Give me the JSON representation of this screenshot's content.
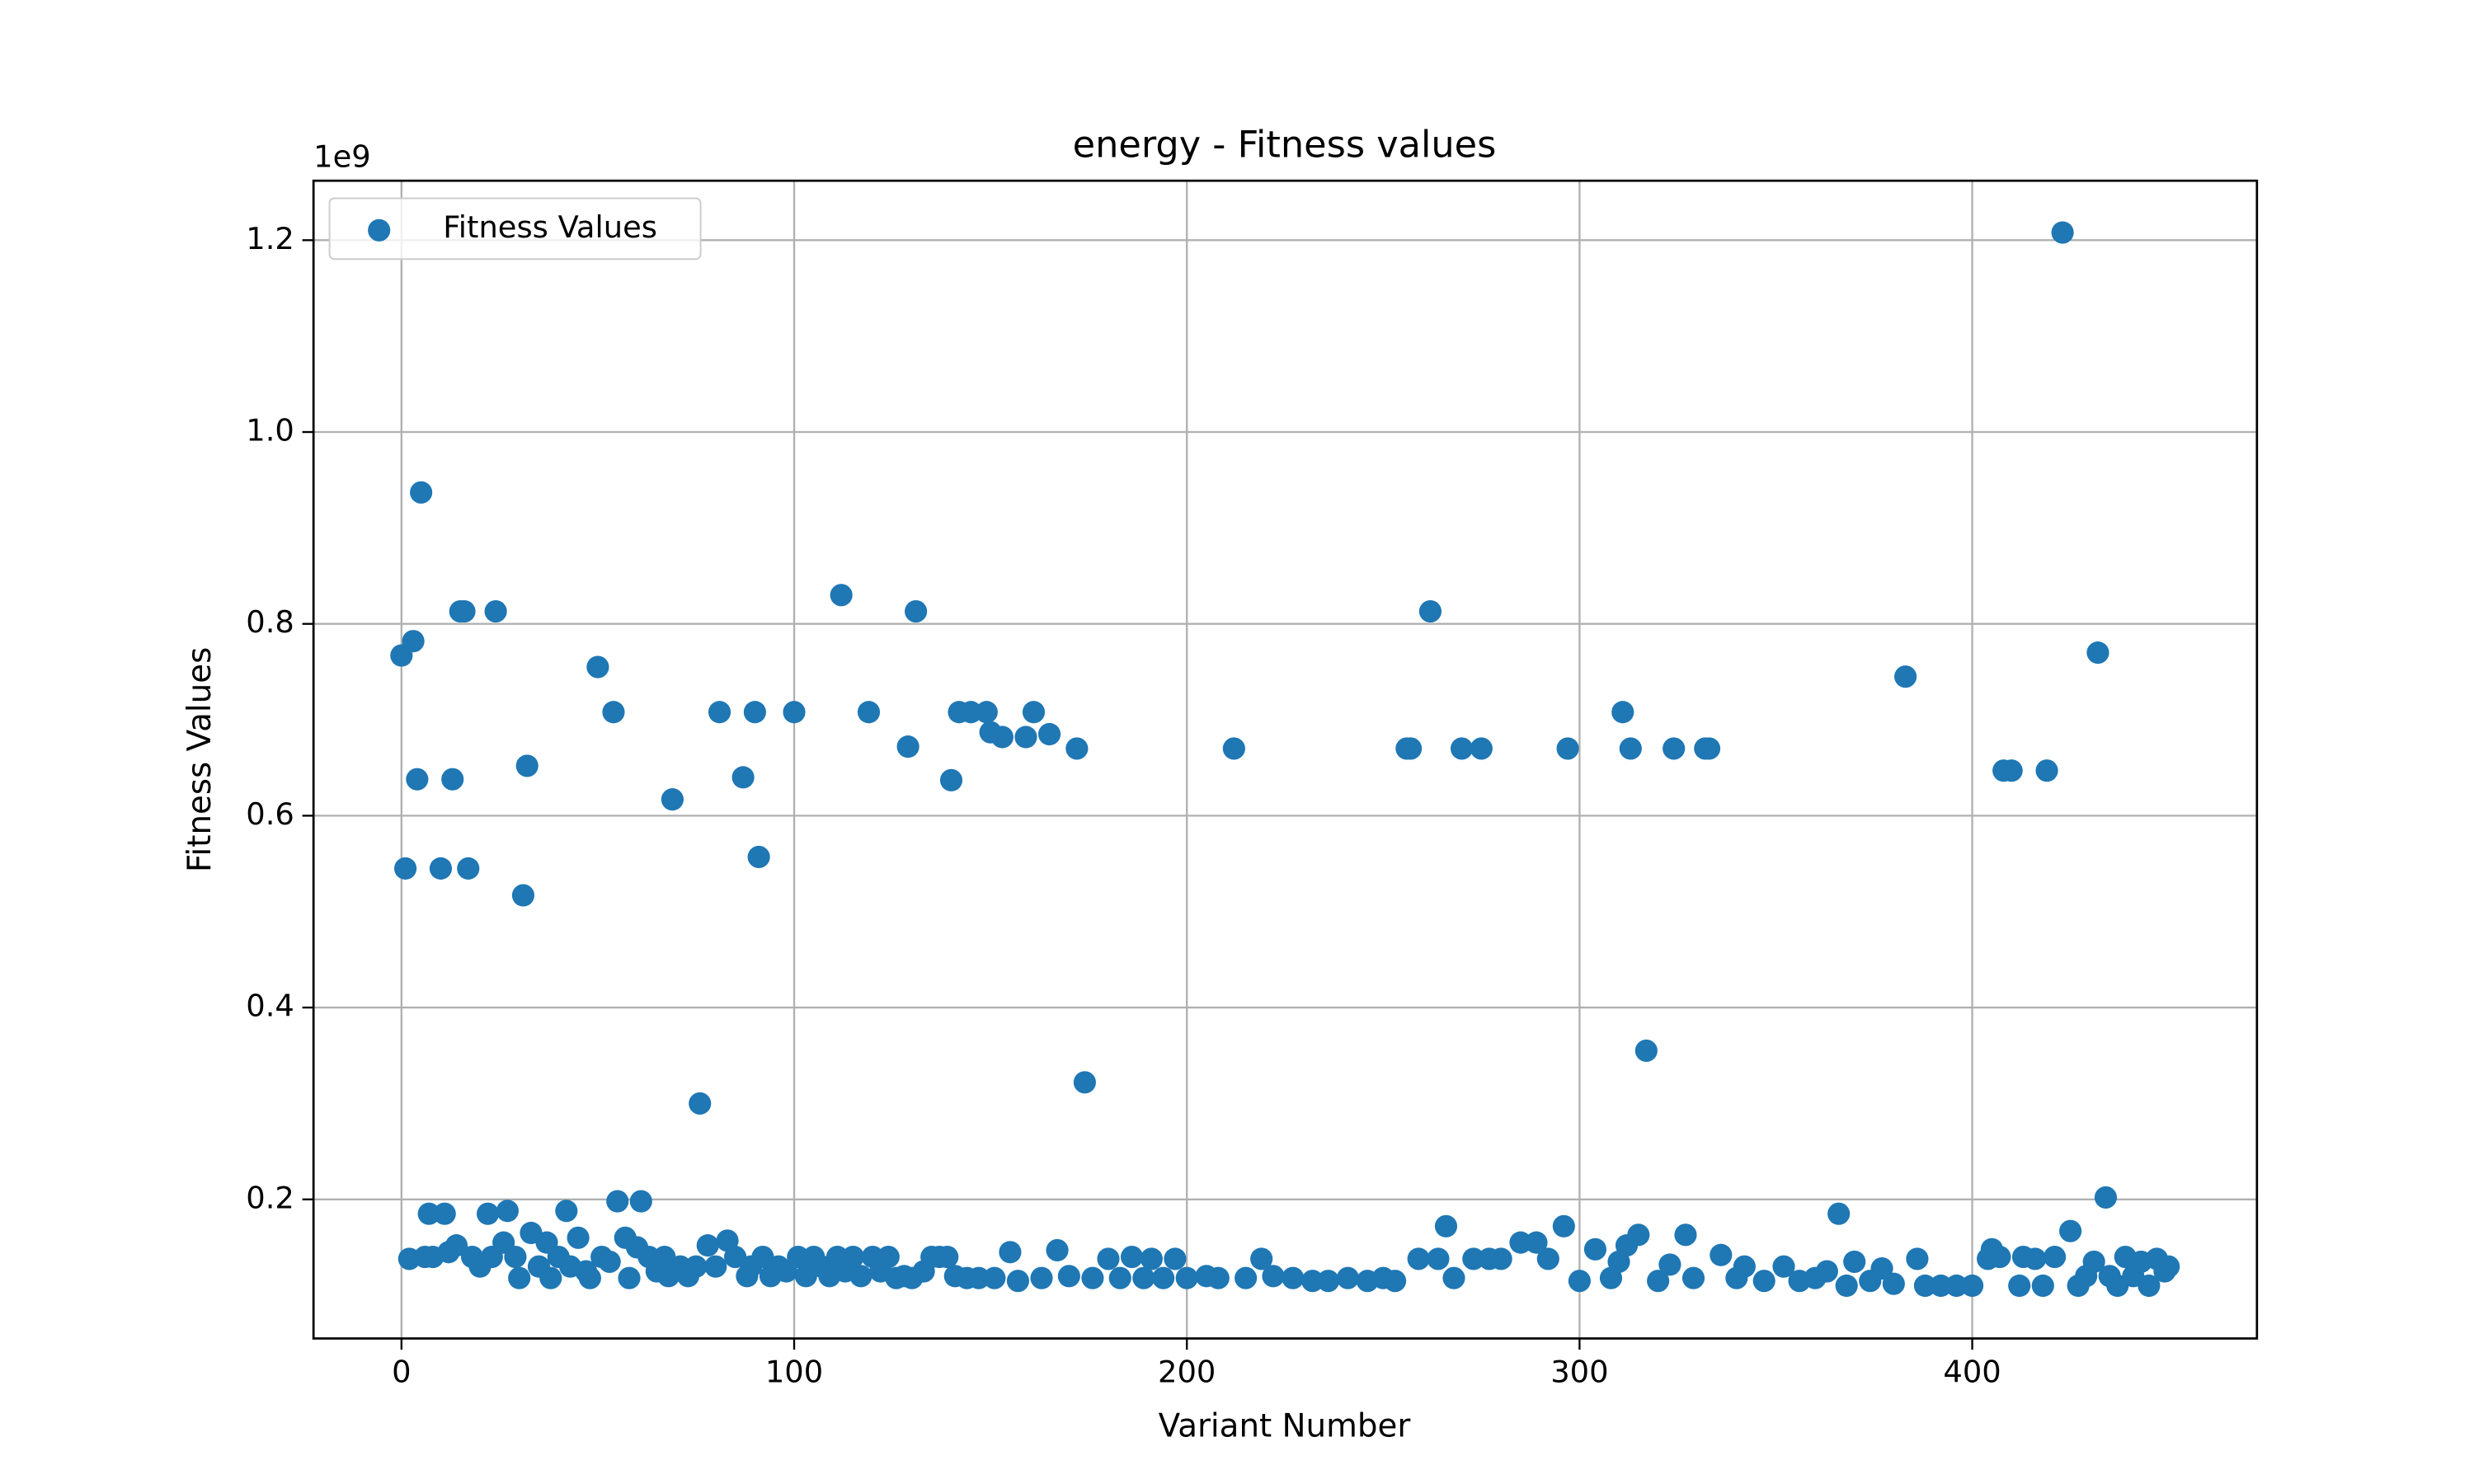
{
  "chart_data": {
    "type": "scatter",
    "title": "energy - Fitness values",
    "xlabel": "Variant Number",
    "ylabel": "Fitness Values",
    "y_offset_text": "1e9",
    "xlim": [
      -22.4,
      472.5
    ],
    "ylim": [
      0.055,
      1.262
    ],
    "xticks": [
      0,
      100,
      200,
      300,
      400
    ],
    "yticks": [
      0.2,
      0.4,
      0.6,
      0.8,
      {
        "value": 1,
        "label": "1.0"
      },
      1.2
    ],
    "grid": true,
    "legend": "upper left",
    "x": [
      0,
      1,
      2,
      3,
      4,
      5,
      7,
      10,
      11,
      13,
      15,
      16,
      17,
      22,
      24,
      27,
      31,
      32,
      42,
      50,
      54,
      55,
      61,
      69,
      76,
      81,
      87,
      90,
      91,
      100,
      112,
      119,
      129,
      131,
      140,
      142,
      145,
      149,
      150,
      153,
      159,
      161,
      165,
      172,
      174,
      212,
      256,
      257,
      262,
      266,
      270,
      275,
      296,
      297,
      311,
      313,
      315,
      317,
      324,
      327,
      332,
      333,
      366,
      383,
      408,
      410,
      419,
      423,
      425,
      432,
      434,
      6,
      8,
      12,
      14,
      18,
      20,
      23,
      26,
      29,
      30,
      33,
      35,
      37,
      38,
      40,
      43,
      45,
      47,
      48,
      51,
      53,
      57,
      58,
      60,
      63,
      65,
      67,
      68,
      71,
      73,
      75,
      78,
      80,
      83,
      85,
      88,
      89,
      92,
      94,
      96,
      98,
      101,
      103,
      105,
      107,
      109,
      111,
      113,
      115,
      117,
      120,
      122,
      124,
      126,
      128,
      130,
      133,
      135,
      137,
      139,
      141,
      144,
      147,
      151,
      155,
      157,
      163,
      167,
      170,
      176,
      180,
      183,
      186,
      189,
      191,
      194,
      197,
      200,
      205,
      208,
      215,
      219,
      222,
      227,
      232,
      236,
      241,
      246,
      250,
      253,
      259,
      264,
      268,
      273,
      277,
      280,
      285,
      289,
      292,
      300,
      304,
      308,
      310,
      312,
      320,
      323,
      329,
      336,
      340,
      342,
      347,
      352,
      356,
      360,
      363,
      368,
      370,
      374,
      377,
      380,
      386,
      388,
      392,
      396,
      400,
      404,
      405,
      407,
      412,
      413,
      416,
      418,
      421,
      427,
      429,
      431,
      435,
      437,
      439,
      441,
      443,
      445,
      447,
      449,
      450
    ],
    "series": [
      {
        "name": "Fitness Values",
        "color": "#1f77b4",
        "values": [
          0.767,
          0.545,
          0.138,
          0.782,
          0.638,
          0.937,
          0.185,
          0.545,
          0.185,
          0.638,
          0.813,
          0.813,
          0.545,
          0.185,
          0.813,
          0.188,
          0.517,
          0.652,
          0.188,
          0.755,
          0.708,
          0.198,
          0.198,
          0.617,
          0.3,
          0.708,
          0.64,
          0.708,
          0.557,
          0.708,
          0.83,
          0.708,
          0.672,
          0.813,
          0.637,
          0.708,
          0.708,
          0.708,
          0.687,
          0.682,
          0.682,
          0.708,
          0.685,
          0.67,
          0.322,
          0.67,
          0.67,
          0.67,
          0.813,
          0.172,
          0.67,
          0.67,
          0.172,
          0.67,
          0.708,
          0.67,
          0.163,
          0.355,
          0.67,
          0.163,
          0.67,
          0.67,
          0.185,
          0.745,
          0.647,
          0.647,
          0.647,
          1.208,
          0.167,
          0.77,
          0.202,
          0.14,
          0.14,
          0.145,
          0.152,
          0.14,
          0.13,
          0.14,
          0.155,
          0.14,
          0.118,
          0.165,
          0.13,
          0.155,
          0.118,
          0.14,
          0.13,
          0.16,
          0.125,
          0.118,
          0.14,
          0.135,
          0.16,
          0.118,
          0.15,
          0.14,
          0.125,
          0.14,
          0.12,
          0.13,
          0.12,
          0.13,
          0.152,
          0.13,
          0.157,
          0.14,
          0.12,
          0.13,
          0.14,
          0.12,
          0.13,
          0.125,
          0.14,
          0.12,
          0.14,
          0.13,
          0.12,
          0.14,
          0.125,
          0.14,
          0.12,
          0.14,
          0.125,
          0.14,
          0.118,
          0.12,
          0.118,
          0.125,
          0.14,
          0.14,
          0.14,
          0.12,
          0.118,
          0.118,
          0.118,
          0.145,
          0.115,
          0.118,
          0.147,
          0.12,
          0.118,
          0.138,
          0.118,
          0.14,
          0.118,
          0.138,
          0.118,
          0.138,
          0.118,
          0.12,
          0.118,
          0.118,
          0.138,
          0.12,
          0.118,
          0.115,
          0.115,
          0.118,
          0.115,
          0.118,
          0.115,
          0.138,
          0.138,
          0.118,
          0.138,
          0.138,
          0.138,
          0.155,
          0.155,
          0.138,
          0.115,
          0.148,
          0.118,
          0.135,
          0.152,
          0.115,
          0.132,
          0.118,
          0.142,
          0.118,
          0.13,
          0.115,
          0.13,
          0.115,
          0.118,
          0.125,
          0.11,
          0.135,
          0.115,
          0.128,
          0.112,
          0.138,
          0.11,
          0.11,
          0.11,
          0.11,
          0.138,
          0.148,
          0.14,
          0.11,
          0.14,
          0.138,
          0.11,
          0.14,
          0.11,
          0.12,
          0.135,
          0.12,
          0.11,
          0.14,
          0.12,
          0.135,
          0.11,
          0.138,
          0.125,
          0.13
        ]
      }
    ]
  }
}
